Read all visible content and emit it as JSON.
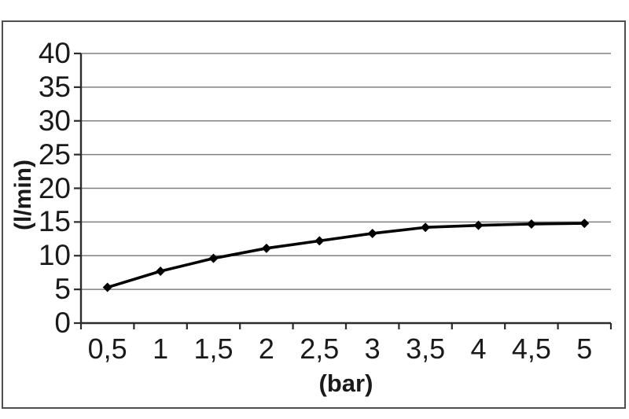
{
  "chart_data": {
    "type": "line",
    "title": "",
    "xlabel": "(bar)",
    "ylabel": "(l/min)",
    "categories": [
      "0,5",
      "1",
      "1,5",
      "2",
      "2,5",
      "3",
      "3,5",
      "4",
      "4,5",
      "5"
    ],
    "x_values": [
      0.5,
      1,
      1.5,
      2,
      2.5,
      3,
      3.5,
      4,
      4.5,
      5
    ],
    "values": [
      5.3,
      7.7,
      9.6,
      11.1,
      12.2,
      13.3,
      14.2,
      14.5,
      14.7,
      14.8
    ],
    "y_ticks": [
      0,
      5,
      10,
      15,
      20,
      25,
      30,
      35,
      40
    ],
    "ylim": [
      0,
      40
    ],
    "grid": "horizontal-only",
    "legend_position": "none",
    "marker": "diamond",
    "colors": {
      "series_line": "#000000",
      "marker_fill": "#000000",
      "gridline": "#808080",
      "axis_line": "#2b2b2b",
      "text": "#1a1a1a",
      "frame_border": "#4e4e4e",
      "background": "#ffffff"
    }
  }
}
